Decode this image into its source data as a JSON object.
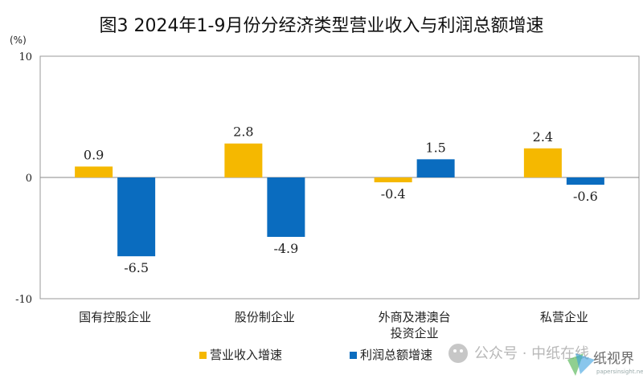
{
  "chart_data": {
    "type": "bar",
    "title": "图3  2024年1-9月份分经济类型营业收入与利润总额增速",
    "unit": "(%)",
    "categories": [
      [
        "国有控股企业"
      ],
      [
        "股份制企业"
      ],
      [
        "外商及港澳台",
        "投资企业"
      ],
      [
        "私营企业"
      ]
    ],
    "series": [
      {
        "name": "营业收入增速",
        "color": "#f5b800",
        "values": [
          0.9,
          2.8,
          -0.4,
          2.4
        ]
      },
      {
        "name": "利润总额增速",
        "color": "#0a6cbf",
        "values": [
          -6.5,
          -4.9,
          1.5,
          -0.6
        ]
      }
    ],
    "ylim": [
      -10,
      10
    ],
    "yticks": [
      10,
      0,
      -10
    ],
    "grid": false,
    "legend_position": "bottom"
  },
  "watermark": {
    "text": "公众号 · 中纸在线",
    "brand": "纸视界",
    "site": "papersinsight.net"
  }
}
